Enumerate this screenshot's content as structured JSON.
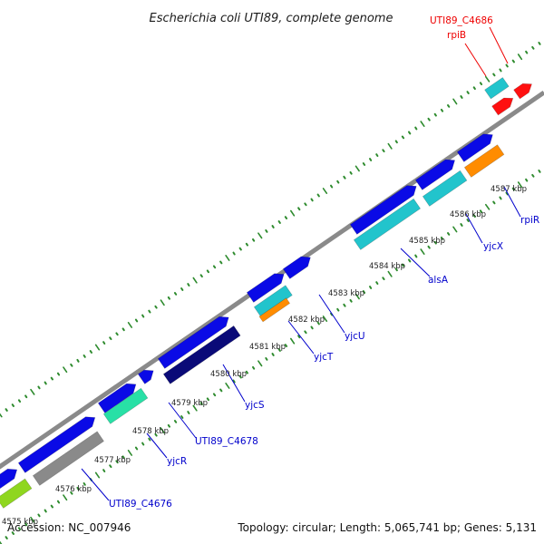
{
  "title": "Escherichia coli UTI89, complete genome",
  "footer": {
    "accession": "Accession: NC_007946",
    "summary": "Topology: circular; Length: 5,065,741 bp; Genes: 5,131"
  },
  "colors": {
    "backbone": "#8a8a8a",
    "tick": "#2e8b2e",
    "label_blue": "#0000cc",
    "label_red": "#ee0000"
  },
  "scale": {
    "kbp_labels": [
      "4575 kbp",
      "4576 kbp",
      "4577 kbp",
      "4578 kbp",
      "4579 kbp",
      "4580 kbp",
      "4581 kbp",
      "4582 kbp",
      "4583 kbp",
      "4584 kbp",
      "4585 kbp",
      "4586 kbp",
      "4587 kbp"
    ]
  },
  "gene_labels": [
    {
      "text": "UTI89_C4676",
      "color": "#0000cc"
    },
    {
      "text": "yjcR",
      "color": "#0000cc"
    },
    {
      "text": "UTI89_C4678",
      "color": "#0000cc"
    },
    {
      "text": "yjcS",
      "color": "#0000cc"
    },
    {
      "text": "yjcT",
      "color": "#0000cc"
    },
    {
      "text": "yjcU",
      "color": "#0000cc"
    },
    {
      "text": "alsA",
      "color": "#0000cc"
    },
    {
      "text": "yjcX",
      "color": "#0000cc"
    },
    {
      "text": "rpiR",
      "color": "#0000cc"
    },
    {
      "text": "rpiB",
      "color": "#ee0000"
    },
    {
      "text": "UTI89_C4686",
      "color": "#ee0000"
    }
  ],
  "feature_colors": {
    "cds_blue": "#0a0ae6",
    "cyan": "#22c4cc",
    "teal": "#28e0a6",
    "navy": "#0a0a78",
    "orange": "#ff8c00",
    "red": "#ff1010",
    "gray": "#8a8a8a",
    "lime": "#8fd61f"
  }
}
